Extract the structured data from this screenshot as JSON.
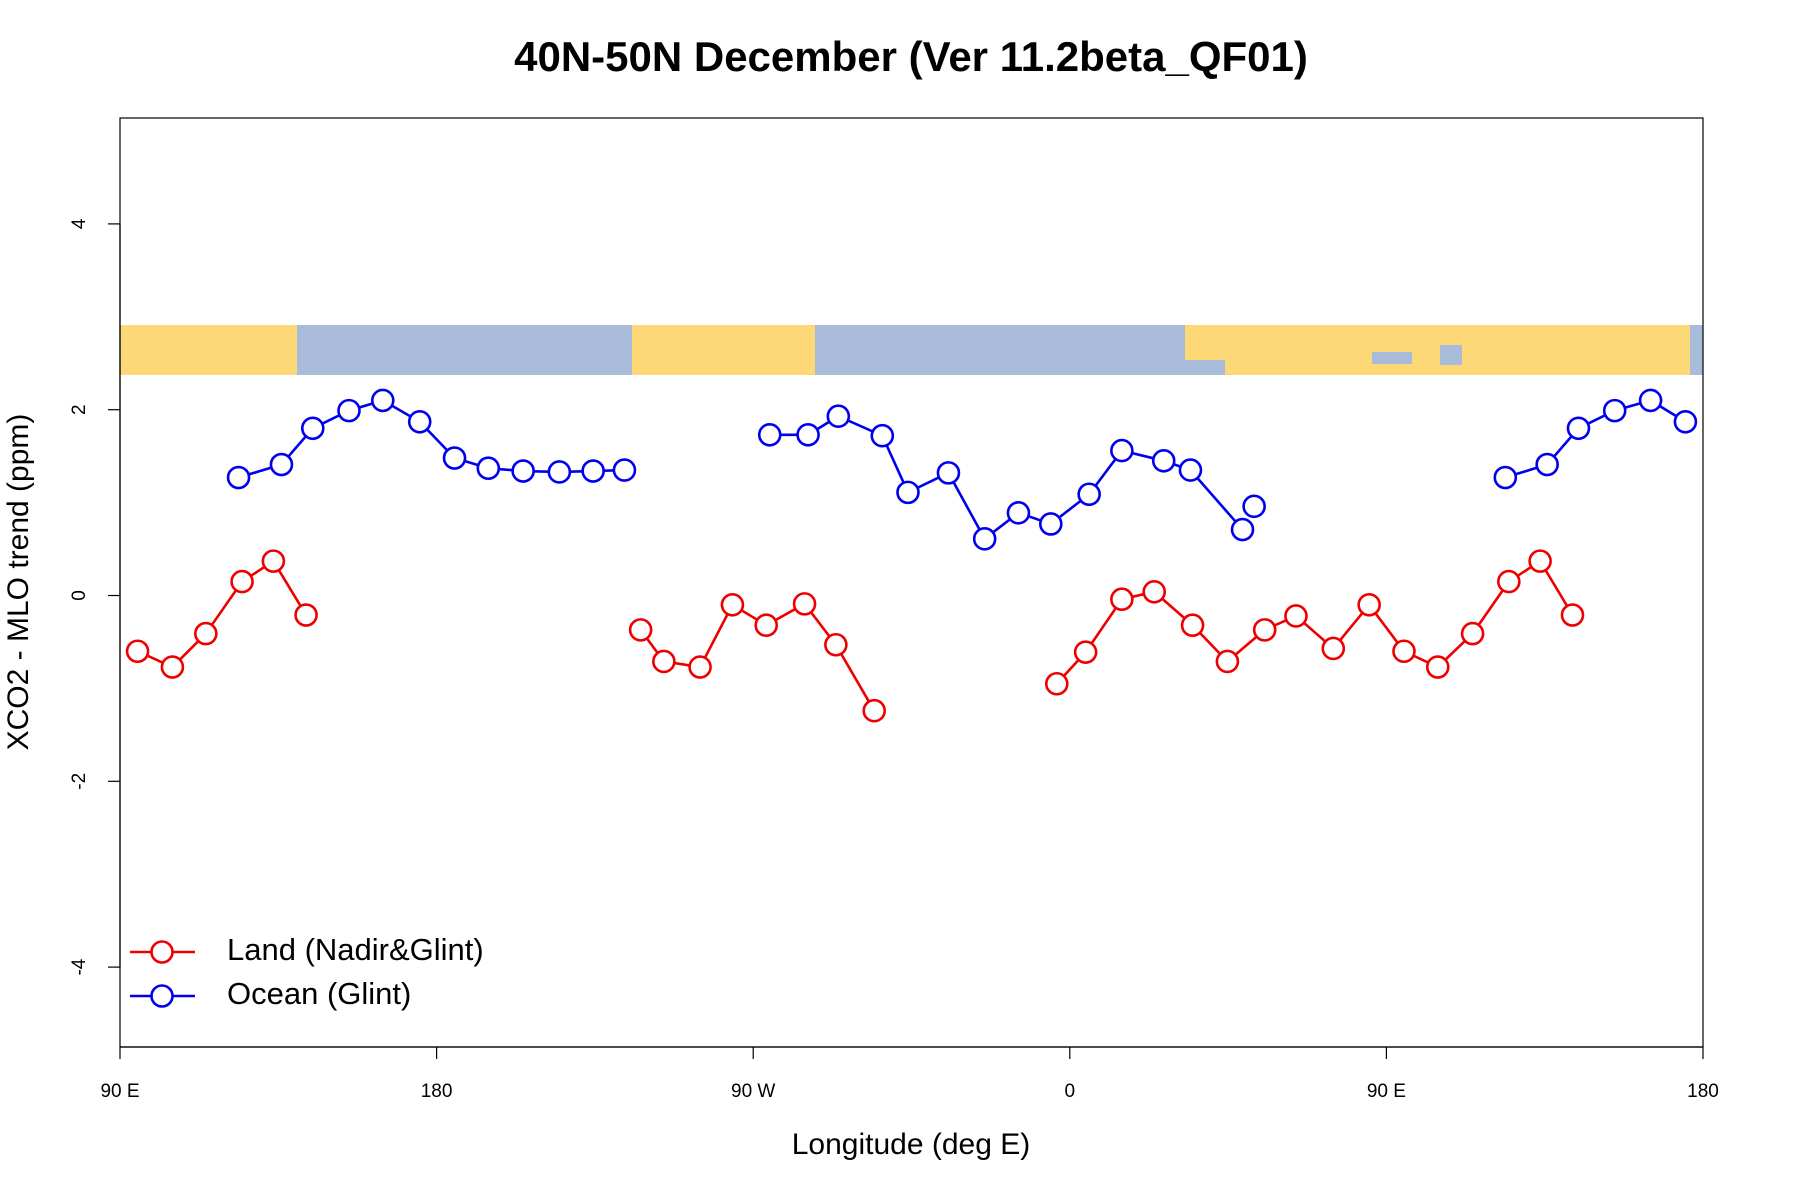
{
  "chart_data": {
    "type": "line",
    "title": "40N-50N December (Ver 11.2beta_QF01)",
    "xlabel": "Longitude (deg E)",
    "ylabel": "XCO2 - MLO trend (ppm)",
    "xlim": [
      90,
      540
    ],
    "ylim": [
      -4.86,
      5.14
    ],
    "xticks": [
      {
        "value": 90,
        "label": "90 E"
      },
      {
        "value": 180,
        "label": "180"
      },
      {
        "value": 270,
        "label": "90 W"
      },
      {
        "value": 360,
        "label": "0"
      },
      {
        "value": 450,
        "label": "90 E"
      },
      {
        "value": 540,
        "label": "180"
      }
    ],
    "yticks": [
      -4,
      -2,
      0,
      2,
      4
    ],
    "legend": "bottom-left",
    "series": [
      {
        "name": "Land (Nadir&Glint)",
        "color": "#ee0000",
        "x": [
          95,
          104.9,
          114.4,
          124.7,
          133.6,
          142.9,
          null,
          238,
          244.6,
          254.9,
          264.1,
          273.7,
          284.6,
          293.5,
          304.4,
          null,
          356.3,
          364.5,
          374.8,
          384.0,
          394.9,
          404.8,
          415.4,
          424.3,
          434.9,
          445.1,
          455.0,
          464.6,
          474.5,
          484.8,
          493.7,
          502.9
        ],
        "values": [
          -0.6,
          -0.77,
          -0.41,
          0.15,
          0.37,
          -0.21,
          null,
          -0.37,
          -0.71,
          -0.77,
          -0.1,
          -0.32,
          -0.09,
          -0.53,
          -1.24,
          null,
          -0.95,
          -0.61,
          -0.04,
          0.04,
          -0.32,
          -0.71,
          -0.37,
          -0.22,
          -0.57,
          -0.1,
          -0.6,
          -0.77,
          -0.41,
          0.15,
          0.37,
          -0.21
        ]
      },
      {
        "name": "Ocean (Glint)",
        "color": "#0000ee",
        "x": [
          123.7,
          135.9,
          144.8,
          155.1,
          164.7,
          175.2,
          185.1,
          194.7,
          204.6,
          214.9,
          224.5,
          233.4,
          null,
          274.7,
          285.6,
          294.2,
          306.7,
          314.0,
          325.5,
          335.8,
          345.4,
          354.6,
          365.5,
          374.8,
          386.7,
          394.3,
          409.1,
          null,
          412.4,
          null,
          483.8,
          495.7,
          504.6,
          514.9,
          525.1,
          535.0
        ],
        "values": [
          1.27,
          1.41,
          1.8,
          1.99,
          2.1,
          1.87,
          1.48,
          1.37,
          1.34,
          1.33,
          1.34,
          1.35,
          null,
          1.73,
          1.73,
          1.93,
          1.72,
          1.11,
          1.32,
          0.61,
          0.89,
          0.77,
          1.09,
          1.56,
          1.45,
          1.35,
          0.71,
          null,
          0.96,
          null,
          1.27,
          1.41,
          1.8,
          1.99,
          2.1,
          1.87
        ]
      }
    ]
  }
}
